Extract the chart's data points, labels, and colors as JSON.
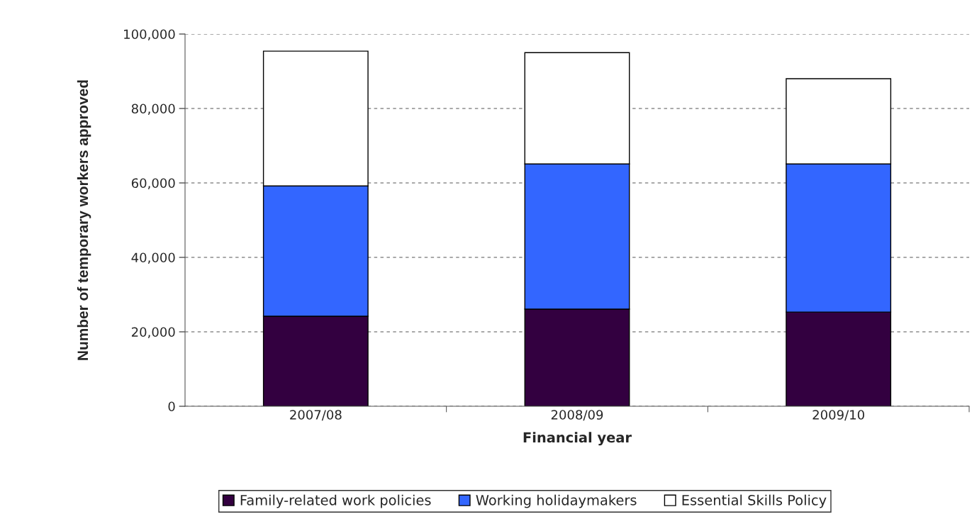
{
  "chart_data": {
    "type": "bar",
    "stacked": true,
    "xlabel": "Financial year",
    "ylabel": "Number of temporary workers approved",
    "categories": [
      "2007/08",
      "2008/09",
      "2009/10"
    ],
    "series": [
      {
        "name": "Family-related work policies",
        "color": "#330040",
        "values": [
          24200,
          26100,
          25300
        ]
      },
      {
        "name": "Working holidaymakers",
        "color": "#3366ff",
        "values": [
          35000,
          39000,
          39800
        ]
      },
      {
        "name": "Essential Skills Policy",
        "color": "#ffffff",
        "values": [
          36200,
          29900,
          22900
        ]
      }
    ],
    "ylim": [
      0,
      100000
    ],
    "yticks": [
      {
        "value": 0,
        "label": "0"
      },
      {
        "value": 20000,
        "label": "20,000"
      },
      {
        "value": 40000,
        "label": "40,000"
      },
      {
        "value": 60000,
        "label": "60,000"
      },
      {
        "value": 80000,
        "label": "80,000"
      },
      {
        "value": 100000,
        "label": "100,000"
      }
    ],
    "grid": "y",
    "legend": "bottom"
  }
}
